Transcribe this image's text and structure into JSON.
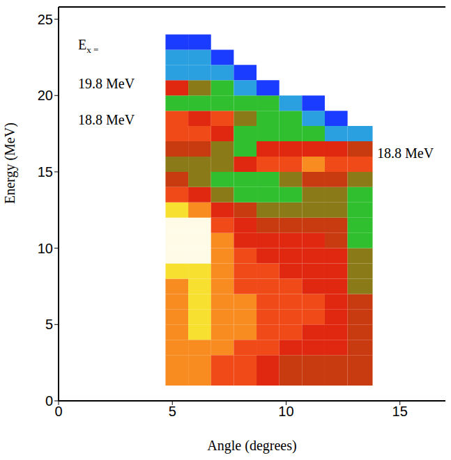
{
  "chart_data": {
    "type": "heatmap",
    "x_label": "Angle (degrees)",
    "y_label": "Energy (MeV)",
    "xlim": [
      0,
      17
    ],
    "ylim": [
      0,
      25.8
    ],
    "xticks": [
      0,
      5,
      10,
      15
    ],
    "yticks": [
      0,
      5,
      10,
      15,
      20,
      25
    ],
    "x_bins": [
      4.7,
      5.7,
      6.7,
      7.7,
      8.7,
      9.7,
      10.7,
      11.7,
      12.7,
      13.8
    ],
    "y_bins": [
      1,
      2,
      3,
      4,
      5,
      6,
      7,
      8,
      9,
      10,
      11,
      12,
      13,
      14,
      15,
      16,
      17,
      18,
      19,
      20,
      21,
      22,
      23,
      24
    ],
    "cells": [
      [
        8,
        8,
        7,
        7,
        6,
        5,
        5,
        5,
        5
      ],
      [
        8,
        8,
        7,
        7,
        6,
        5,
        5,
        5,
        5
      ],
      [
        8,
        8,
        8,
        7,
        7,
        6,
        6,
        6,
        5
      ],
      [
        8,
        9,
        8,
        8,
        7,
        7,
        6,
        6,
        5
      ],
      [
        8,
        9,
        8,
        8,
        7,
        7,
        7,
        6,
        5
      ],
      [
        8,
        9,
        8,
        8,
        7,
        7,
        7,
        6,
        5
      ],
      [
        8,
        9,
        8,
        7,
        7,
        7,
        6,
        6,
        4
      ],
      [
        9,
        9,
        8,
        7,
        7,
        6,
        6,
        6,
        4
      ],
      [
        10,
        10,
        8,
        7,
        6,
        6,
        6,
        6,
        4
      ],
      [
        10,
        10,
        8,
        6,
        6,
        6,
        6,
        5,
        3
      ],
      [
        10,
        10,
        7,
        6,
        5,
        5,
        5,
        5,
        3
      ],
      [
        9,
        8,
        6,
        5,
        4,
        4,
        4,
        4,
        3
      ],
      [
        7,
        6,
        4,
        3,
        3,
        3,
        4,
        4,
        3
      ],
      [
        5,
        4,
        3,
        3,
        3,
        4,
        5,
        5,
        4
      ],
      [
        4,
        4,
        4,
        6,
        7,
        7,
        8,
        7,
        7
      ],
      [
        5,
        5,
        4,
        3,
        6,
        6,
        6,
        6,
        5
      ],
      [
        7,
        7,
        6,
        3,
        3,
        3,
        3,
        2,
        2
      ],
      [
        7,
        6,
        7,
        4,
        3,
        3,
        2,
        1,
        null
      ],
      [
        3,
        3,
        3,
        3,
        3,
        2,
        1,
        null,
        null
      ],
      [
        6,
        4,
        3,
        2,
        1,
        null,
        null,
        null,
        null
      ],
      [
        2,
        2,
        2,
        1,
        null,
        null,
        null,
        null,
        null
      ],
      [
        2,
        2,
        1,
        null,
        null,
        null,
        null,
        null,
        null
      ],
      [
        1,
        1,
        null,
        null,
        null,
        null,
        null,
        null,
        null
      ]
    ],
    "annotations": [
      {
        "text": "E",
        "subscript": "x ="
      },
      {
        "text": "19.8 MeV"
      },
      {
        "text": "18.8 MeV"
      },
      {
        "text": "18.8 MeV"
      }
    ]
  }
}
